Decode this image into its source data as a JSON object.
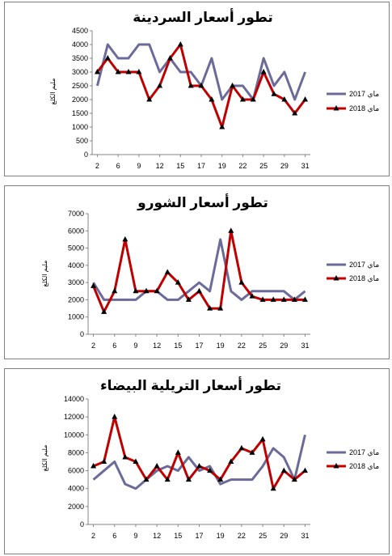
{
  "palette": {
    "series_2017": "#6b6b9a",
    "series_2018": "#c00000",
    "marker": "#000000",
    "axis": "#868686"
  },
  "chart_data": [
    {
      "type": "line",
      "title": "تطور أسعار السردينة",
      "ylabel": "مليم الكلغ",
      "xlabel": "",
      "ylim": [
        0,
        4500
      ],
      "yticks": [
        0,
        500,
        1000,
        1500,
        2000,
        2500,
        3000,
        3500,
        4000,
        4500
      ],
      "x": [
        2,
        4,
        6,
        8,
        9,
        11,
        12,
        13,
        15,
        16,
        17,
        18,
        19,
        20,
        22,
        24,
        25,
        26,
        29,
        30,
        31
      ],
      "xtick_labels": [
        "2",
        "6",
        "9",
        "12",
        "15",
        "17",
        "19",
        "22",
        "25",
        "29",
        "31"
      ],
      "grid": false,
      "legend_position": "right",
      "series": [
        {
          "name": "ماي 2017",
          "values": [
            2500,
            4000,
            3500,
            3500,
            4000,
            4000,
            3000,
            3500,
            3000,
            3000,
            2500,
            3500,
            2000,
            2500,
            2500,
            2000,
            3500,
            2500,
            3000,
            2000,
            3000
          ]
        },
        {
          "name": "ماي 2018",
          "values": [
            3000,
            3500,
            3000,
            3000,
            3000,
            2000,
            2500,
            3500,
            4000,
            2500,
            2500,
            2000,
            1000,
            2500,
            2000,
            2000,
            3000,
            2200,
            2000,
            1500,
            2000
          ]
        }
      ]
    },
    {
      "type": "line",
      "title": "تطور أسعار الشورو",
      "ylabel": "مليم الكلغ",
      "xlabel": "",
      "ylim": [
        0,
        7000
      ],
      "yticks": [
        0,
        1000,
        2000,
        3000,
        4000,
        5000,
        6000,
        7000
      ],
      "x": [
        2,
        4,
        6,
        8,
        9,
        11,
        12,
        13,
        15,
        16,
        17,
        18,
        19,
        20,
        22,
        24,
        25,
        26,
        29,
        30,
        31
      ],
      "xtick_labels": [
        "2",
        "6",
        "9",
        "12",
        "15",
        "17",
        "19",
        "22",
        "25",
        "29",
        "31"
      ],
      "grid": false,
      "legend_position": "right",
      "series": [
        {
          "name": "ماي 2017",
          "values": [
            3000,
            2000,
            2000,
            2000,
            2000,
            2500,
            2500,
            2000,
            2000,
            2500,
            3000,
            2500,
            5500,
            2500,
            2000,
            2500,
            2500,
            2500,
            2500,
            2000,
            2500
          ]
        },
        {
          "name": "ماي 2018",
          "values": [
            2800,
            1300,
            2500,
            5500,
            2500,
            2500,
            2500,
            3600,
            3000,
            2000,
            2500,
            1500,
            1500,
            6000,
            3000,
            2200,
            2000,
            2000,
            2000,
            2000,
            2000
          ]
        }
      ]
    },
    {
      "type": "line",
      "title": "تطور أسعار التريلية البيضاء",
      "ylabel": "مليم الكلغ",
      "xlabel": "",
      "ylim": [
        0,
        14000
      ],
      "yticks": [
        0,
        2000,
        4000,
        6000,
        8000,
        10000,
        12000,
        14000
      ],
      "x": [
        2,
        4,
        6,
        8,
        9,
        11,
        12,
        13,
        15,
        16,
        17,
        18,
        19,
        20,
        22,
        24,
        25,
        26,
        29,
        30,
        31
      ],
      "xtick_labels": [
        "2",
        "6",
        "9",
        "12",
        "15",
        "17",
        "19",
        "22",
        "25",
        "29",
        "31"
      ],
      "grid": false,
      "legend_position": "right",
      "series": [
        {
          "name": "ماي 2017",
          "values": [
            5000,
            6000,
            7000,
            4500,
            4000,
            5000,
            6000,
            6500,
            6000,
            7500,
            6000,
            6500,
            4500,
            5000,
            5000,
            5000,
            6500,
            8500,
            7500,
            5000,
            10000
          ]
        },
        {
          "name": "ماي 2018",
          "values": [
            6500,
            7000,
            12000,
            7500,
            7000,
            5000,
            6500,
            5000,
            8000,
            5000,
            6500,
            6000,
            5000,
            7000,
            8500,
            8000,
            9500,
            4000,
            6000,
            5000,
            6000
          ]
        }
      ]
    }
  ]
}
